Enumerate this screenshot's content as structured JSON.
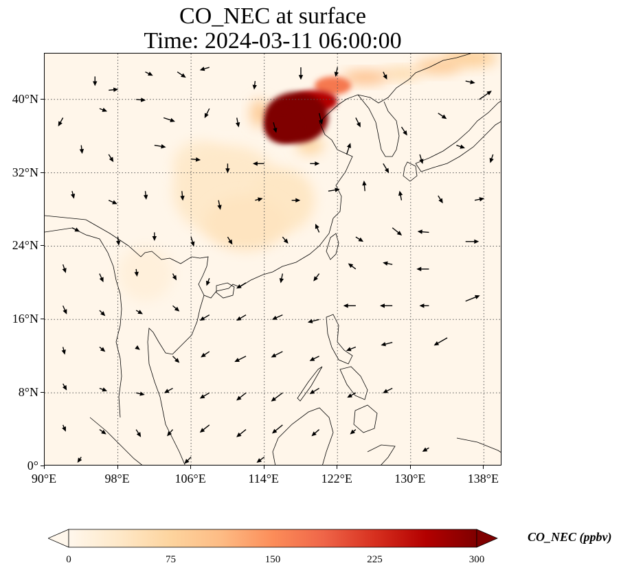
{
  "figure": {
    "title_line1": "CO_NEC at surface",
    "title_line2": "Time: 2024-03-11 06:00:00"
  },
  "map": {
    "projection": "PlateCarree",
    "lon_range": [
      90,
      140
    ],
    "lat_range": [
      0,
      45
    ],
    "gridlines": "dotted",
    "background_color": "#fff6ea",
    "coastline_color": "#000000"
  },
  "axes": {
    "y_ticks": [
      {
        "value": 0,
        "label": "0°"
      },
      {
        "value": 8,
        "label": "8°N"
      },
      {
        "value": 16,
        "label": "16°N"
      },
      {
        "value": 24,
        "label": "24°N"
      },
      {
        "value": 32,
        "label": "32°N"
      },
      {
        "value": 40,
        "label": "40°N"
      }
    ],
    "x_ticks": [
      {
        "value": 90,
        "label": "90°E"
      },
      {
        "value": 98,
        "label": "98°E"
      },
      {
        "value": 106,
        "label": "106°E"
      },
      {
        "value": 114,
        "label": "114°E"
      },
      {
        "value": 122,
        "label": "122°E"
      },
      {
        "value": 130,
        "label": "130°E"
      },
      {
        "value": 138,
        "label": "138°E"
      }
    ]
  },
  "colorbar": {
    "label": "CO_NEC (ppbv)",
    "range": [
      0,
      300
    ],
    "extend": "both",
    "colormap": "OrRd",
    "colors": [
      "#fff7ec",
      "#fee8c8",
      "#fdd49e",
      "#fdbb84",
      "#fc8d59",
      "#ef6548",
      "#d7301f",
      "#b30000",
      "#7f0000"
    ],
    "ticks": [
      {
        "value": 0,
        "label": "0"
      },
      {
        "value": 75,
        "label": "75"
      },
      {
        "value": 150,
        "label": "150"
      },
      {
        "value": 225,
        "label": "225"
      },
      {
        "value": 300,
        "label": "300"
      }
    ]
  },
  "chart_data": {
    "type": "heatmap",
    "variable": "CO_NEC",
    "units": "ppbv",
    "title": "CO_NEC at surface",
    "subtitle": "Time: 2024-03-11 06:00:00",
    "xlabel": "",
    "ylabel": "",
    "xlim": [
      90,
      140
    ],
    "ylim": [
      0,
      45
    ],
    "concentration_features": [
      {
        "lon": 117.5,
        "lat": 38.0,
        "rx": 3.5,
        "ry": 2.8,
        "value": 300
      },
      {
        "lon": 116.0,
        "lat": 37.0,
        "rx": 2.0,
        "ry": 1.8,
        "value": 300
      },
      {
        "lon": 119.5,
        "lat": 39.8,
        "rx": 2.5,
        "ry": 1.2,
        "value": 260
      },
      {
        "lon": 121.5,
        "lat": 41.5,
        "rx": 2.0,
        "ry": 1.0,
        "value": 170
      },
      {
        "lon": 125.0,
        "lat": 42.4,
        "rx": 2.5,
        "ry": 0.7,
        "value": 110
      },
      {
        "lon": 129.0,
        "lat": 42.8,
        "rx": 2.2,
        "ry": 0.6,
        "value": 70
      },
      {
        "lon": 133.0,
        "lat": 43.6,
        "rx": 2.5,
        "ry": 0.8,
        "value": 90
      },
      {
        "lon": 136.5,
        "lat": 44.5,
        "rx": 3.0,
        "ry": 1.0,
        "value": 80
      },
      {
        "lon": 113.5,
        "lat": 38.5,
        "rx": 1.0,
        "ry": 1.5,
        "value": 90
      },
      {
        "lon": 110.0,
        "lat": 30.0,
        "rx": 6.0,
        "ry": 5.0,
        "value": 35
      },
      {
        "lon": 112.0,
        "lat": 26.5,
        "rx": 4.5,
        "ry": 3.0,
        "value": 45
      },
      {
        "lon": 116.0,
        "lat": 29.0,
        "rx": 3.5,
        "ry": 3.5,
        "value": 40
      },
      {
        "lon": 107.0,
        "lat": 33.0,
        "rx": 3.0,
        "ry": 2.5,
        "value": 30
      },
      {
        "lon": 101.0,
        "lat": 21.0,
        "rx": 3.0,
        "ry": 3.0,
        "value": 18
      },
      {
        "lon": 119.0,
        "lat": 35.0,
        "rx": 1.5,
        "ry": 1.0,
        "value": 70
      }
    ],
    "wind_vectors": [
      {
        "lon": 95.5,
        "lat": 42.5,
        "u": 0.0,
        "v": -1.0
      },
      {
        "lon": 97.0,
        "lat": 41.0,
        "u": 1.0,
        "v": 0.1
      },
      {
        "lon": 101.0,
        "lat": 43.0,
        "u": 0.8,
        "v": -0.4
      },
      {
        "lon": 104.5,
        "lat": 43.0,
        "u": 0.9,
        "v": -0.6
      },
      {
        "lon": 108.0,
        "lat": 43.5,
        "u": -1.0,
        "v": -0.3
      },
      {
        "lon": 113.0,
        "lat": 42.0,
        "u": -0.1,
        "v": -0.9
      },
      {
        "lon": 118.0,
        "lat": 43.5,
        "u": 0.0,
        "v": -1.3
      },
      {
        "lon": 122.0,
        "lat": 43.5,
        "u": -0.2,
        "v": -1.0
      },
      {
        "lon": 127.0,
        "lat": 43.0,
        "u": 0.4,
        "v": -0.8
      },
      {
        "lon": 136.0,
        "lat": 42.0,
        "u": 1.0,
        "v": -0.2
      },
      {
        "lon": 92.0,
        "lat": 38.0,
        "u": -0.5,
        "v": -0.9
      },
      {
        "lon": 96.0,
        "lat": 39.0,
        "u": 0.8,
        "v": -0.3
      },
      {
        "lon": 100.0,
        "lat": 40.0,
        "u": 1.0,
        "v": -0.1
      },
      {
        "lon": 103.0,
        "lat": 38.0,
        "u": 1.2,
        "v": -0.4
      },
      {
        "lon": 108.0,
        "lat": 39.0,
        "u": -0.5,
        "v": -1.0
      },
      {
        "lon": 111.0,
        "lat": 38.0,
        "u": 0.2,
        "v": -1.0
      },
      {
        "lon": 115.0,
        "lat": 37.5,
        "u": 0.3,
        "v": -1.1
      },
      {
        "lon": 120.0,
        "lat": 38.5,
        "u": 0.3,
        "v": -1.2
      },
      {
        "lon": 124.0,
        "lat": 38.0,
        "u": 0.5,
        "v": -1.0
      },
      {
        "lon": 129.0,
        "lat": 37.0,
        "u": 0.6,
        "v": -0.9
      },
      {
        "lon": 133.0,
        "lat": 38.5,
        "u": 0.9,
        "v": -0.6
      },
      {
        "lon": 137.5,
        "lat": 40.0,
        "u": 1.3,
        "v": 0.9
      },
      {
        "lon": 94.0,
        "lat": 35.0,
        "u": 0.1,
        "v": -0.9
      },
      {
        "lon": 97.0,
        "lat": 34.0,
        "u": 0.5,
        "v": -0.8
      },
      {
        "lon": 102.0,
        "lat": 35.0,
        "u": 1.2,
        "v": -0.2
      },
      {
        "lon": 106.0,
        "lat": 33.5,
        "u": 1.0,
        "v": -0.1
      },
      {
        "lon": 110.0,
        "lat": 33.0,
        "u": 0.0,
        "v": -1.0
      },
      {
        "lon": 114.0,
        "lat": 33.0,
        "u": -1.2,
        "v": 0.0
      },
      {
        "lon": 119.0,
        "lat": 33.0,
        "u": 1.0,
        "v": 0.0
      },
      {
        "lon": 123.0,
        "lat": 34.0,
        "u": 0.4,
        "v": 1.2
      },
      {
        "lon": 127.0,
        "lat": 33.0,
        "u": 0.6,
        "v": -1.0
      },
      {
        "lon": 131.0,
        "lat": 34.0,
        "u": 0.3,
        "v": -1.0
      },
      {
        "lon": 135.0,
        "lat": 35.0,
        "u": 0.9,
        "v": -0.3
      },
      {
        "lon": 139.0,
        "lat": 34.0,
        "u": -0.3,
        "v": -0.9
      },
      {
        "lon": 93.0,
        "lat": 30.0,
        "u": 0.2,
        "v": -0.8
      },
      {
        "lon": 97.0,
        "lat": 29.0,
        "u": 0.9,
        "v": -0.4
      },
      {
        "lon": 101.0,
        "lat": 30.0,
        "u": 0.1,
        "v": -0.9
      },
      {
        "lon": 105.0,
        "lat": 30.0,
        "u": 0.1,
        "v": -1.0
      },
      {
        "lon": 109.0,
        "lat": 29.0,
        "u": 0.2,
        "v": -1.0
      },
      {
        "lon": 113.0,
        "lat": 29.0,
        "u": 0.8,
        "v": 0.2
      },
      {
        "lon": 117.0,
        "lat": 29.0,
        "u": 0.9,
        "v": 0.0
      },
      {
        "lon": 121.0,
        "lat": 30.0,
        "u": 1.2,
        "v": 0.2
      },
      {
        "lon": 125.0,
        "lat": 30.0,
        "u": -0.1,
        "v": 1.1
      },
      {
        "lon": 129.0,
        "lat": 29.0,
        "u": -0.2,
        "v": 1.0
      },
      {
        "lon": 133.0,
        "lat": 29.5,
        "u": 0.5,
        "v": -0.8
      },
      {
        "lon": 137.0,
        "lat": 29.0,
        "u": 1.0,
        "v": 0.2
      },
      {
        "lon": 93.0,
        "lat": 26.0,
        "u": 0.8,
        "v": -0.4
      },
      {
        "lon": 98.0,
        "lat": 25.0,
        "u": 0.1,
        "v": -0.9
      },
      {
        "lon": 102.0,
        "lat": 25.5,
        "u": 0.0,
        "v": -0.9
      },
      {
        "lon": 106.0,
        "lat": 25.0,
        "u": 0.3,
        "v": -1.0
      },
      {
        "lon": 110.0,
        "lat": 25.0,
        "u": 0.5,
        "v": -0.8
      },
      {
        "lon": 116.0,
        "lat": 25.0,
        "u": 0.6,
        "v": -0.7
      },
      {
        "lon": 120.0,
        "lat": 25.5,
        "u": -0.4,
        "v": 0.9
      },
      {
        "lon": 124.0,
        "lat": 25.0,
        "u": 0.8,
        "v": -0.5
      },
      {
        "lon": 128.0,
        "lat": 26.0,
        "u": 1.0,
        "v": -0.8
      },
      {
        "lon": 132.0,
        "lat": 25.5,
        "u": -1.2,
        "v": 0.1
      },
      {
        "lon": 136.0,
        "lat": 24.5,
        "u": 1.4,
        "v": 0.0
      },
      {
        "lon": 92.0,
        "lat": 22.0,
        "u": 0.3,
        "v": -0.9
      },
      {
        "lon": 96.0,
        "lat": 21.0,
        "u": 0.4,
        "v": -0.9
      },
      {
        "lon": 100.0,
        "lat": 21.5,
        "u": 0.1,
        "v": -0.8
      },
      {
        "lon": 104.0,
        "lat": 21.0,
        "u": 0.4,
        "v": -0.7
      },
      {
        "lon": 108.0,
        "lat": 20.5,
        "u": -0.3,
        "v": -0.8
      },
      {
        "lon": 112.0,
        "lat": 20.0,
        "u": -1.0,
        "v": -0.6
      },
      {
        "lon": 116.0,
        "lat": 21.0,
        "u": -0.2,
        "v": -1.0
      },
      {
        "lon": 120.0,
        "lat": 21.0,
        "u": -0.6,
        "v": -0.8
      },
      {
        "lon": 124.0,
        "lat": 21.5,
        "u": -0.8,
        "v": 0.6
      },
      {
        "lon": 128.0,
        "lat": 22.0,
        "u": -1.0,
        "v": 0.2
      },
      {
        "lon": 132.0,
        "lat": 21.5,
        "u": -1.3,
        "v": 0.0
      },
      {
        "lon": 92.0,
        "lat": 17.5,
        "u": 0.4,
        "v": -0.9
      },
      {
        "lon": 96.0,
        "lat": 17.0,
        "u": 0.6,
        "v": -0.6
      },
      {
        "lon": 100.0,
        "lat": 17.0,
        "u": 0.7,
        "v": -0.4
      },
      {
        "lon": 104.0,
        "lat": 17.5,
        "u": 0.7,
        "v": -0.6
      },
      {
        "lon": 108.0,
        "lat": 16.5,
        "u": -1.0,
        "v": -0.6
      },
      {
        "lon": 112.0,
        "lat": 16.5,
        "u": -1.0,
        "v": -0.6
      },
      {
        "lon": 116.0,
        "lat": 16.5,
        "u": -1.1,
        "v": -0.5
      },
      {
        "lon": 120.0,
        "lat": 16.0,
        "u": -1.2,
        "v": -0.3
      },
      {
        "lon": 124.0,
        "lat": 17.5,
        "u": -1.3,
        "v": 0.0
      },
      {
        "lon": 128.0,
        "lat": 17.5,
        "u": -1.3,
        "v": 0.0
      },
      {
        "lon": 132.0,
        "lat": 17.5,
        "u": -1.0,
        "v": 0.0
      },
      {
        "lon": 136.0,
        "lat": 18.0,
        "u": 1.5,
        "v": 0.6
      },
      {
        "lon": 92.0,
        "lat": 13.0,
        "u": 0.2,
        "v": -0.8
      },
      {
        "lon": 96.0,
        "lat": 13.0,
        "u": 0.6,
        "v": -0.5
      },
      {
        "lon": 100.0,
        "lat": 13.0,
        "u": 0.4,
        "v": -0.3
      },
      {
        "lon": 104.0,
        "lat": 12.0,
        "u": 0.7,
        "v": -0.7
      },
      {
        "lon": 108.0,
        "lat": 12.5,
        "u": -0.9,
        "v": -0.6
      },
      {
        "lon": 112.0,
        "lat": 12.0,
        "u": -1.2,
        "v": -0.6
      },
      {
        "lon": 116.0,
        "lat": 12.5,
        "u": -1.2,
        "v": -0.6
      },
      {
        "lon": 120.0,
        "lat": 12.0,
        "u": -1.0,
        "v": -0.5
      },
      {
        "lon": 124.0,
        "lat": 13.0,
        "u": -1.0,
        "v": -0.4
      },
      {
        "lon": 128.0,
        "lat": 13.5,
        "u": -1.2,
        "v": -0.3
      },
      {
        "lon": 134.0,
        "lat": 14.0,
        "u": -1.4,
        "v": -0.8
      },
      {
        "lon": 92.0,
        "lat": 9.0,
        "u": 0.4,
        "v": -0.7
      },
      {
        "lon": 96.0,
        "lat": 8.5,
        "u": 0.8,
        "v": -0.3
      },
      {
        "lon": 100.0,
        "lat": 8.0,
        "u": 0.9,
        "v": -0.2
      },
      {
        "lon": 104.0,
        "lat": 8.5,
        "u": -0.9,
        "v": -0.5
      },
      {
        "lon": 108.0,
        "lat": 8.0,
        "u": -1.0,
        "v": -0.6
      },
      {
        "lon": 112.0,
        "lat": 8.0,
        "u": -1.0,
        "v": -0.8
      },
      {
        "lon": 116.0,
        "lat": 8.0,
        "u": -1.2,
        "v": -0.9
      },
      {
        "lon": 120.0,
        "lat": 8.5,
        "u": -1.0,
        "v": -0.6
      },
      {
        "lon": 124.0,
        "lat": 8.0,
        "u": -0.9,
        "v": -0.5
      },
      {
        "lon": 128.0,
        "lat": 8.5,
        "u": -1.0,
        "v": -0.5
      },
      {
        "lon": 92.0,
        "lat": 4.5,
        "u": 0.3,
        "v": -0.7
      },
      {
        "lon": 96.0,
        "lat": 4.0,
        "u": 0.7,
        "v": -0.5
      },
      {
        "lon": 100.0,
        "lat": 4.0,
        "u": 0.5,
        "v": -0.8
      },
      {
        "lon": 104.0,
        "lat": 4.0,
        "u": -0.6,
        "v": -0.7
      },
      {
        "lon": 108.0,
        "lat": 4.5,
        "u": -1.0,
        "v": -0.8
      },
      {
        "lon": 112.0,
        "lat": 4.0,
        "u": -1.0,
        "v": -0.8
      },
      {
        "lon": 116.0,
        "lat": 4.5,
        "u": -1.1,
        "v": -0.9
      },
      {
        "lon": 120.0,
        "lat": 4.0,
        "u": -0.8,
        "v": -0.7
      },
      {
        "lon": 124.0,
        "lat": 4.0,
        "u": -0.6,
        "v": -0.5
      },
      {
        "lon": 132.0,
        "lat": 2.0,
        "u": -0.7,
        "v": -0.4
      },
      {
        "lon": 94.0,
        "lat": 1.0,
        "u": -0.4,
        "v": -0.6
      },
      {
        "lon": 106.0,
        "lat": 1.0,
        "u": -0.7,
        "v": -0.7
      },
      {
        "lon": 114.0,
        "lat": 1.0,
        "u": -0.8,
        "v": -0.6
      }
    ]
  }
}
